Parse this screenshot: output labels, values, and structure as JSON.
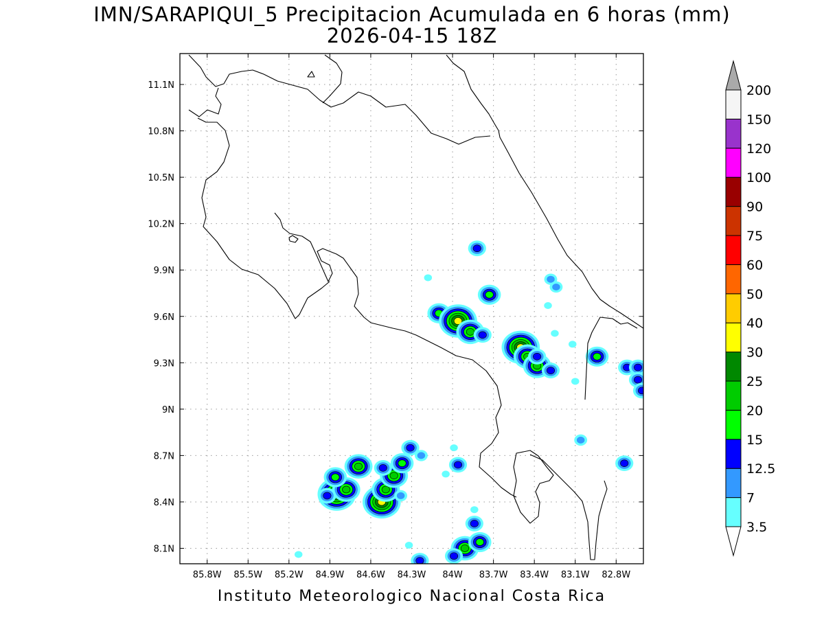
{
  "title": {
    "line1": "IMN/SARAPIQUI_5 Precipitacion Acumulada en 6 horas (mm)",
    "line2": "2026-04-15 18Z"
  },
  "footer": "Instituto Meteorologico Nacional Costa Rica",
  "map": {
    "lat_range": [
      8.0,
      11.3
    ],
    "lon_range": [
      -86.0,
      -82.6
    ],
    "lat_ticks": [
      {
        "value": 11.1,
        "label": "11.1N"
      },
      {
        "value": 10.8,
        "label": "10.8N"
      },
      {
        "value": 10.5,
        "label": "10.5N"
      },
      {
        "value": 10.2,
        "label": "10.2N"
      },
      {
        "value": 9.9,
        "label": "9.9N"
      },
      {
        "value": 9.6,
        "label": "9.6N"
      },
      {
        "value": 9.3,
        "label": "9.3N"
      },
      {
        "value": 9.0,
        "label": "9N"
      },
      {
        "value": 8.7,
        "label": "8.7N"
      },
      {
        "value": 8.4,
        "label": "8.4N"
      },
      {
        "value": 8.1,
        "label": "8.1N"
      }
    ],
    "lon_ticks": [
      {
        "value": -85.8,
        "label": "85.8W"
      },
      {
        "value": -85.5,
        "label": "85.5W"
      },
      {
        "value": -85.2,
        "label": "85.2W"
      },
      {
        "value": -84.9,
        "label": "84.9W"
      },
      {
        "value": -84.6,
        "label": "84.6W"
      },
      {
        "value": -84.3,
        "label": "84.3W"
      },
      {
        "value": -84.0,
        "label": "84W"
      },
      {
        "value": -83.7,
        "label": "83.7W"
      },
      {
        "value": -83.4,
        "label": "83.4W"
      },
      {
        "value": -83.1,
        "label": "83.1W"
      },
      {
        "value": -82.8,
        "label": "82.8W"
      }
    ],
    "grid": true,
    "colors": {
      "coastline": "#000000",
      "grid": "#9a9a9a"
    }
  },
  "colorbar": {
    "levels": [
      {
        "label": "3.5",
        "color": "#66ffff"
      },
      {
        "label": "7",
        "color": "#3399ff"
      },
      {
        "label": "12.5",
        "color": "#0000ff"
      },
      {
        "label": "15",
        "color": "#00ff00"
      },
      {
        "label": "20",
        "color": "#00cc00"
      },
      {
        "label": "25",
        "color": "#008800"
      },
      {
        "label": "30",
        "color": "#ffff00"
      },
      {
        "label": "40",
        "color": "#ffcc00"
      },
      {
        "label": "50",
        "color": "#ff6600"
      },
      {
        "label": "60",
        "color": "#ff0000"
      },
      {
        "label": "75",
        "color": "#cc3300"
      },
      {
        "label": "90",
        "color": "#990000"
      },
      {
        "label": "100",
        "color": "#ff00ff"
      },
      {
        "label": "120",
        "color": "#9933cc"
      },
      {
        "label": "150",
        "color": "#f5f5f5"
      },
      {
        "label": "200",
        "color": "#aaaaaa"
      }
    ],
    "bottom_arrow_color": "#ffffff",
    "top_arrow_color": "#aaaaaa"
  },
  "precip_cells": [
    {
      "lon": -83.82,
      "lat": 10.04,
      "level": 2
    },
    {
      "lon": -84.18,
      "lat": 9.85,
      "level": 0
    },
    {
      "lon": -84.1,
      "lat": 9.62,
      "level": 3
    },
    {
      "lon": -83.96,
      "lat": 9.57,
      "level": 6
    },
    {
      "lon": -83.87,
      "lat": 9.5,
      "level": 4
    },
    {
      "lon": -83.78,
      "lat": 9.48,
      "level": 2
    },
    {
      "lon": -83.73,
      "lat": 9.74,
      "level": 3
    },
    {
      "lon": -83.5,
      "lat": 9.4,
      "level": 6
    },
    {
      "lon": -83.45,
      "lat": 9.34,
      "level": 4
    },
    {
      "lon": -83.38,
      "lat": 9.28,
      "level": 4
    },
    {
      "lon": -83.38,
      "lat": 9.34,
      "level": 2
    },
    {
      "lon": -83.28,
      "lat": 9.25,
      "level": 2
    },
    {
      "lon": -83.28,
      "lat": 9.84,
      "level": 1
    },
    {
      "lon": -83.24,
      "lat": 9.79,
      "level": 1
    },
    {
      "lon": -83.3,
      "lat": 9.67,
      "level": 0
    },
    {
      "lon": -83.25,
      "lat": 9.49,
      "level": 0
    },
    {
      "lon": -83.12,
      "lat": 9.42,
      "level": 0
    },
    {
      "lon": -82.94,
      "lat": 9.34,
      "level": 3
    },
    {
      "lon": -82.72,
      "lat": 9.27,
      "level": 2
    },
    {
      "lon": -82.64,
      "lat": 9.27,
      "level": 2
    },
    {
      "lon": -82.64,
      "lat": 9.19,
      "level": 2
    },
    {
      "lon": -82.61,
      "lat": 9.12,
      "level": 2
    },
    {
      "lon": -83.1,
      "lat": 9.18,
      "level": 0
    },
    {
      "lon": -83.06,
      "lat": 8.8,
      "level": 1
    },
    {
      "lon": -82.74,
      "lat": 8.65,
      "level": 2
    },
    {
      "lon": -84.85,
      "lat": 8.45,
      "level": 6
    },
    {
      "lon": -84.78,
      "lat": 8.48,
      "level": 4
    },
    {
      "lon": -84.92,
      "lat": 8.44,
      "level": 2
    },
    {
      "lon": -84.86,
      "lat": 8.56,
      "level": 3
    },
    {
      "lon": -84.69,
      "lat": 8.63,
      "level": 4
    },
    {
      "lon": -84.52,
      "lat": 8.4,
      "level": 6
    },
    {
      "lon": -84.49,
      "lat": 8.48,
      "level": 4
    },
    {
      "lon": -84.43,
      "lat": 8.57,
      "level": 4
    },
    {
      "lon": -84.51,
      "lat": 8.62,
      "level": 2
    },
    {
      "lon": -84.37,
      "lat": 8.65,
      "level": 3
    },
    {
      "lon": -84.31,
      "lat": 8.75,
      "level": 2
    },
    {
      "lon": -84.23,
      "lat": 8.7,
      "level": 1
    },
    {
      "lon": -84.38,
      "lat": 8.44,
      "level": 1
    },
    {
      "lon": -84.05,
      "lat": 8.58,
      "level": 0
    },
    {
      "lon": -83.96,
      "lat": 8.64,
      "level": 2
    },
    {
      "lon": -83.99,
      "lat": 8.75,
      "level": 0
    },
    {
      "lon": -83.91,
      "lat": 8.1,
      "level": 4
    },
    {
      "lon": -83.8,
      "lat": 8.14,
      "level": 3
    },
    {
      "lon": -83.84,
      "lat": 8.26,
      "level": 2
    },
    {
      "lon": -83.84,
      "lat": 8.35,
      "level": 0
    },
    {
      "lon": -83.99,
      "lat": 8.05,
      "level": 2
    },
    {
      "lon": -84.24,
      "lat": 8.02,
      "level": 2
    },
    {
      "lon": -84.32,
      "lat": 8.12,
      "level": 0
    },
    {
      "lon": -85.13,
      "lat": 8.06,
      "level": 0
    }
  ]
}
